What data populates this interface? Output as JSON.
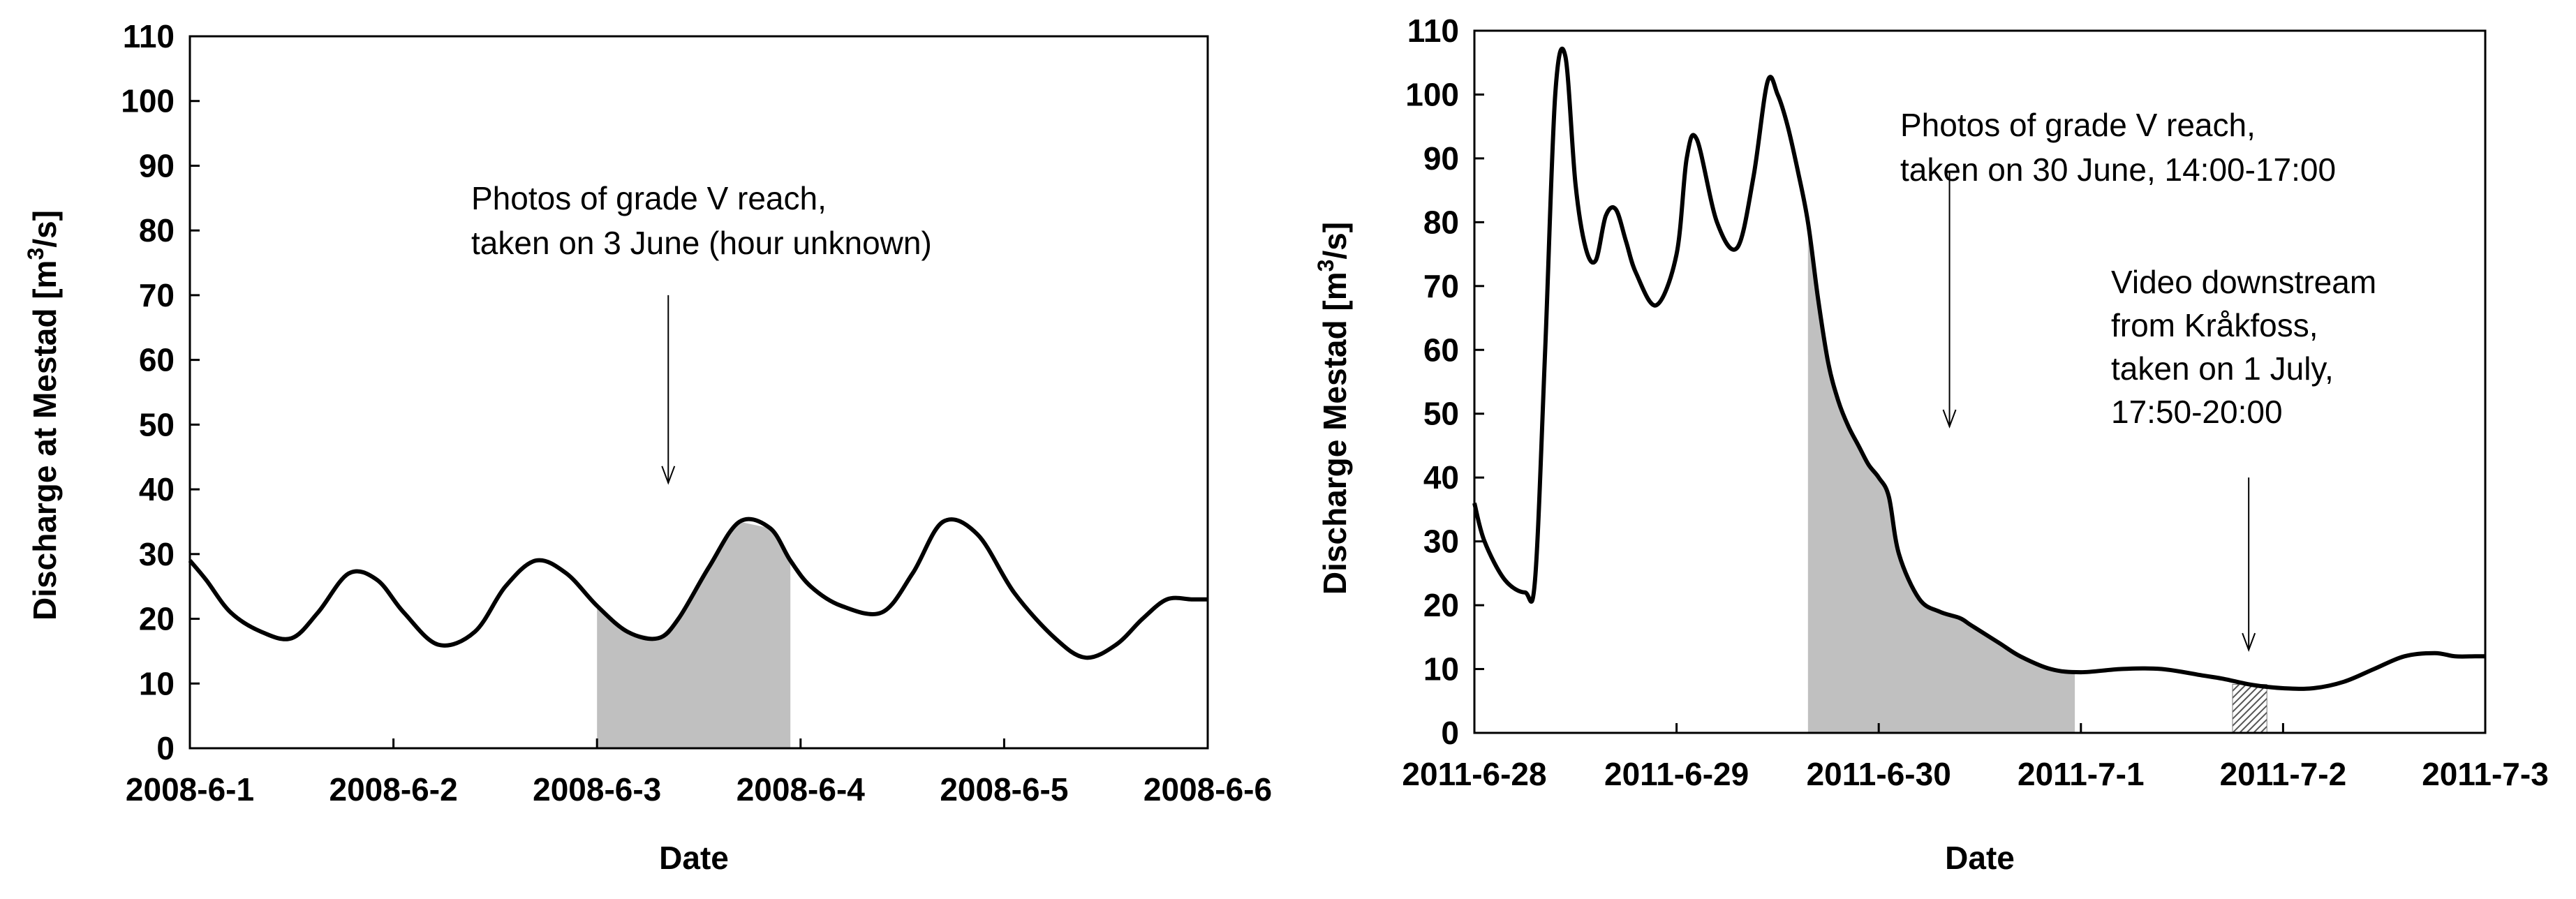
{
  "chart_data": [
    {
      "type": "line",
      "xlabel": "Date",
      "ylabel_main": "Discharge at Mestad [m",
      "ylabel_sup": "3",
      "ylabel_tail": "/s]",
      "ylim": [
        0,
        110
      ],
      "yticks": [
        "0",
        "10",
        "20",
        "30",
        "40",
        "50",
        "60",
        "70",
        "80",
        "90",
        "100",
        "110"
      ],
      "xticks": [
        "2008-6-1",
        "2008-6-2",
        "2008-6-3",
        "2008-6-4",
        "2008-6-5",
        "2008-6-6"
      ],
      "x_range_days": [
        0,
        5
      ],
      "grid": false,
      "series": [
        {
          "x": [
            0,
            0.08,
            0.2,
            0.35,
            0.5,
            0.63,
            0.78,
            0.92,
            1.05,
            1.22,
            1.4,
            1.55,
            1.7,
            1.85,
            2.0,
            2.15,
            2.3,
            2.4,
            2.55,
            2.7,
            2.85,
            2.95,
            3.05,
            3.2,
            3.4,
            3.55,
            3.7,
            3.87,
            4.05,
            4.25,
            4.4,
            4.55,
            4.68,
            4.8,
            4.92,
            5.0
          ],
          "y": [
            29,
            26,
            21,
            18,
            17,
            21,
            27,
            26,
            21,
            16,
            18,
            25,
            29,
            27,
            22,
            18,
            17,
            20,
            28,
            35,
            34,
            29,
            25,
            22,
            21,
            27,
            35,
            33,
            24,
            17,
            14,
            16,
            20,
            23,
            23,
            23
          ]
        }
      ],
      "shaded_region": [
        2.0,
        2.95
      ],
      "annotation": {
        "lines": [
          "Photos of grade V reach,",
          "taken on 3 June (hour unknown)"
        ],
        "arrow_x": 2.35,
        "arrow_y_from": 70,
        "arrow_y_to": 41
      }
    },
    {
      "type": "line",
      "xlabel": "Date",
      "ylabel_main": "Discharge Mestad [m",
      "ylabel_sup": "3",
      "ylabel_tail": "/s]",
      "ylim": [
        0,
        110
      ],
      "yticks": [
        "0",
        "10",
        "20",
        "30",
        "40",
        "50",
        "60",
        "70",
        "80",
        "90",
        "100",
        "110"
      ],
      "xticks": [
        "2011-6-28",
        "2011-6-29",
        "2011-6-30",
        "2011-7-1",
        "2011-7-2",
        "2011-7-3"
      ],
      "x_range_days": [
        0,
        5
      ],
      "grid": false,
      "series": [
        {
          "x": [
            0,
            0.05,
            0.15,
            0.25,
            0.3,
            0.35,
            0.4,
            0.45,
            0.5,
            0.55,
            0.6,
            0.65,
            0.7,
            0.75,
            0.8,
            0.9,
            1.0,
            1.05,
            1.1,
            1.2,
            1.3,
            1.38,
            1.45,
            1.5,
            1.55,
            1.6,
            1.65,
            1.7,
            1.75,
            1.8,
            1.85,
            1.9,
            1.95,
            2.0,
            2.05,
            2.1,
            2.2,
            2.3,
            2.4,
            2.45,
            2.5,
            2.6,
            2.7,
            2.85,
            3.0,
            3.2,
            3.4,
            3.6,
            3.7,
            3.85,
            4.0,
            4.15,
            4.3,
            4.45,
            4.6,
            4.75,
            4.85,
            4.95,
            5.0
          ],
          "y": [
            36,
            30,
            24,
            22,
            24,
            60,
            100,
            106,
            86,
            76,
            74,
            81,
            82,
            77,
            72,
            67,
            75,
            90,
            93,
            80,
            76,
            87,
            102,
            100,
            95,
            88,
            80,
            68,
            58,
            52,
            48,
            45,
            42,
            40,
            37,
            28,
            21,
            19,
            18,
            17,
            16,
            14,
            12,
            10,
            9.5,
            10,
            10,
            9,
            8.5,
            7.5,
            7,
            7,
            8,
            10,
            12,
            12.5,
            12,
            12,
            12
          ]
        }
      ],
      "shaded_region": [
        1.65,
        2.97
      ],
      "hatched_region": [
        3.75,
        3.92
      ],
      "annotations": [
        {
          "lines": [
            "Photos of grade V reach,",
            "taken on 30 June, 14:00-17:00"
          ],
          "arrow_x": 2.35,
          "arrow_y_from": 88,
          "arrow_y_to": 48
        },
        {
          "lines": [
            "Video downstream",
            "from Kråkfoss,",
            "taken on 1 July,",
            "17:50-20:00"
          ],
          "arrow_x": 3.83,
          "arrow_y_from": 40,
          "arrow_y_to": 13
        }
      ]
    }
  ]
}
